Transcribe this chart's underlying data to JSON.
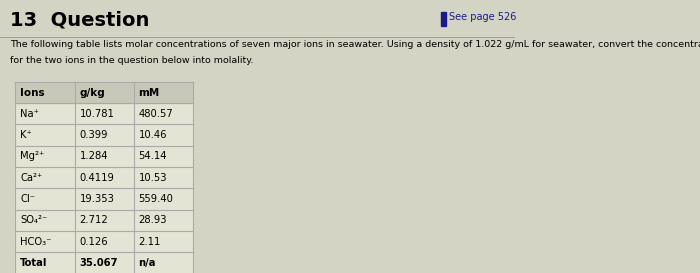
{
  "title": "13  Question",
  "see_page": "See page 526",
  "description_line1": "The following table lists molar concentrations of seven major ions in seawater. Using a density of 1.022 g/mL for seawater, convert the concentrations",
  "description_line2": "for the two ions in the question below into molality.",
  "col_headers": [
    "Ions",
    "g/kg",
    "mM"
  ],
  "rows": [
    [
      "Na⁺",
      "10.781",
      "480.57"
    ],
    [
      "K⁺",
      "0.399",
      "10.46"
    ],
    [
      "Mg²⁺",
      "1.284",
      "54.14"
    ],
    [
      "Ca²⁺",
      "0.4119",
      "10.53"
    ],
    [
      "Cl⁻",
      "19.353",
      "559.40"
    ],
    [
      "SO₄²⁻",
      "2.712",
      "28.93"
    ],
    [
      "HCO₃⁻",
      "0.126",
      "2.11"
    ],
    [
      "Total",
      "35.067",
      "n/a"
    ]
  ],
  "bg_color": "#d4d4c4",
  "table_bg": "#e4e4d4",
  "header_bg": "#c8c8b8",
  "title_color": "#000000",
  "text_color": "#000000",
  "grid_color": "#aaaaaa",
  "bookmark_color": "#1a1a8c",
  "sep_line_color": "#888888"
}
